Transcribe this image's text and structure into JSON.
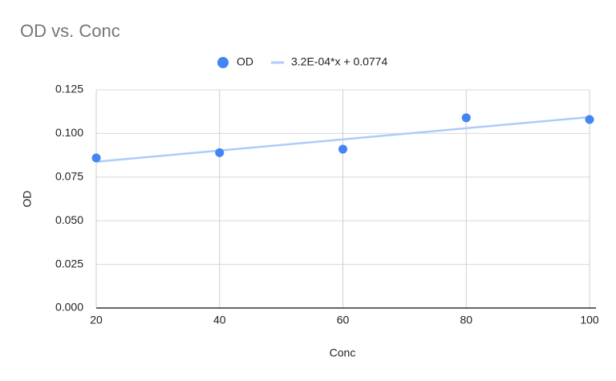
{
  "chart_data": {
    "type": "scatter",
    "title": "OD vs. Conc",
    "x_label": "Conc",
    "y_label": "OD",
    "series": [
      {
        "name": "OD",
        "type": "scatter",
        "color": "#4285f4",
        "x": [
          20,
          40,
          60,
          80,
          100
        ],
        "values": [
          0.086,
          0.089,
          0.091,
          0.109,
          0.108
        ]
      },
      {
        "name": "3.2E-04*x + 0.0774",
        "type": "line",
        "color": "#aecbfa",
        "x": [
          20,
          100
        ],
        "values": [
          0.0838,
          0.1094
        ]
      }
    ],
    "xlim": [
      20,
      100
    ],
    "xticks": [
      20,
      40,
      60,
      80,
      100
    ],
    "ylim": [
      0,
      0.125
    ],
    "yticks": [
      {
        "value": 0,
        "label": "0.000"
      },
      {
        "value": 0.025,
        "label": "0.025"
      },
      {
        "value": 0.05,
        "label": "0.050"
      },
      {
        "value": 0.075,
        "label": "0.075"
      },
      {
        "value": 0.1,
        "label": "0.100"
      },
      {
        "value": 0.125,
        "label": "0.125"
      }
    ],
    "grid": true,
    "legend": "top"
  }
}
